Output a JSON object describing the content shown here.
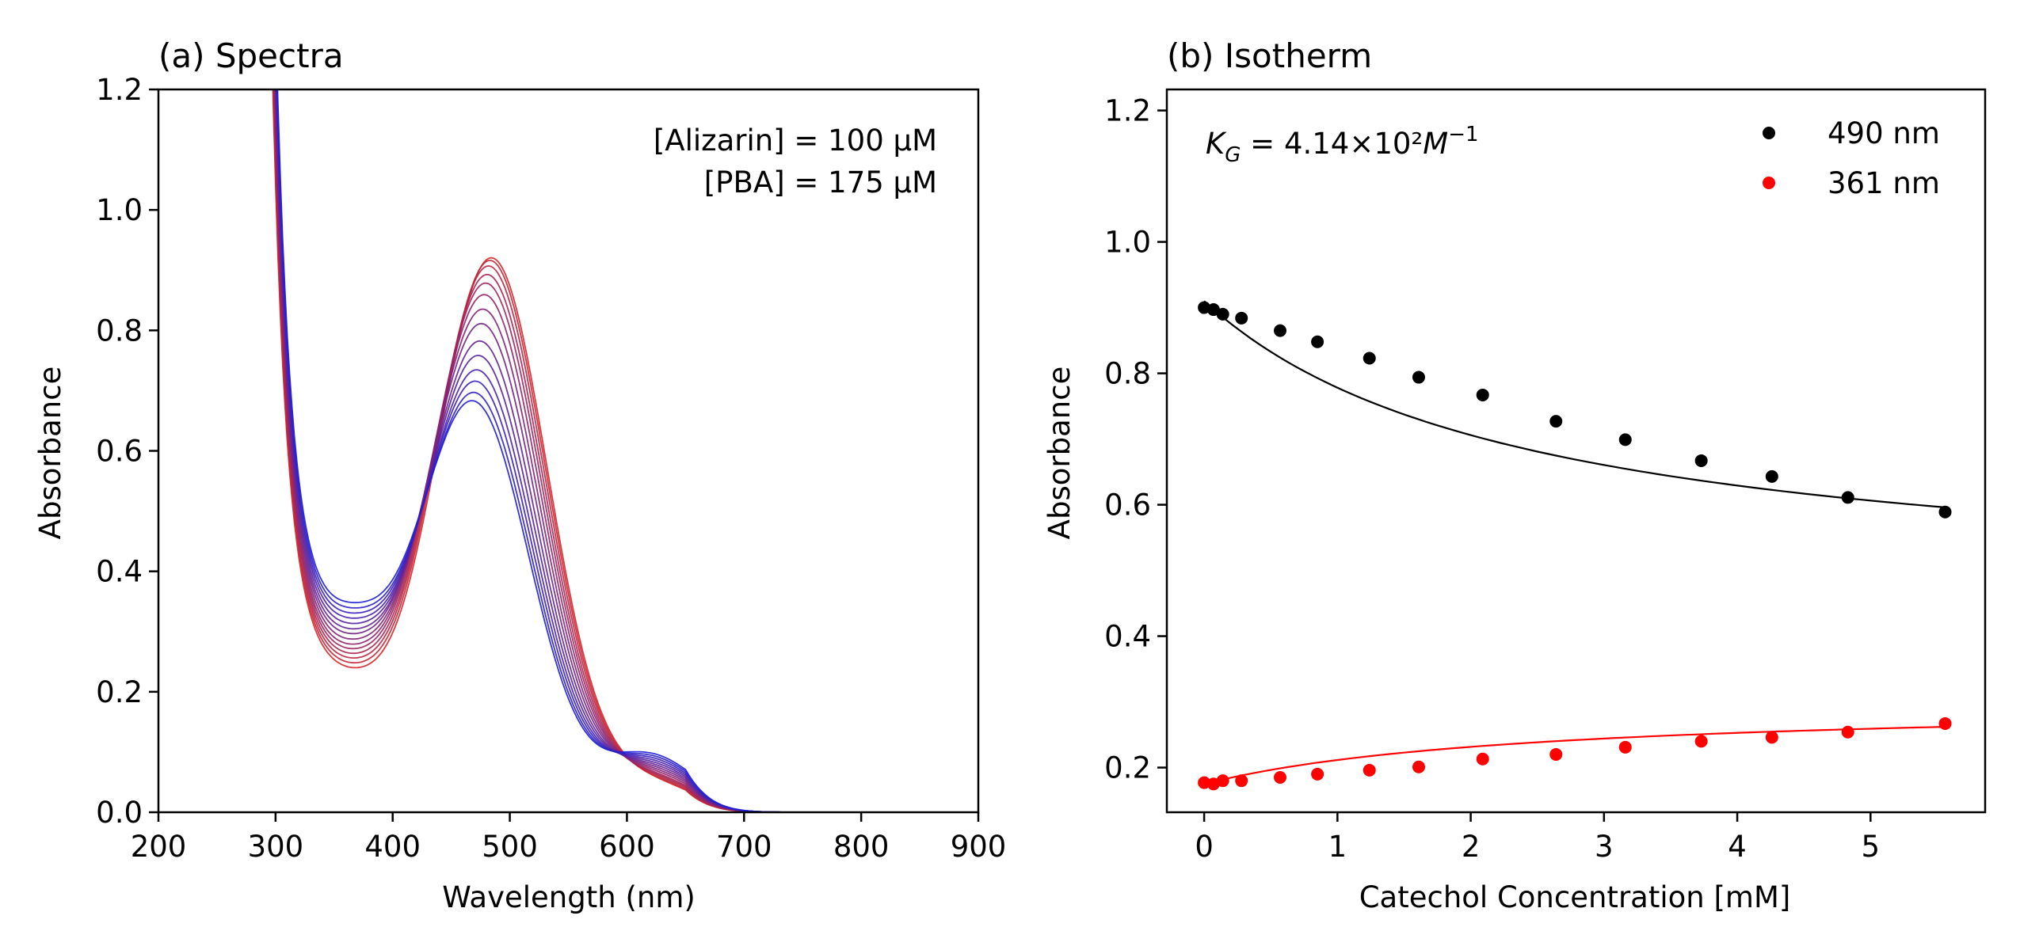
{
  "chart_data": [
    {
      "type": "line",
      "title": "(a) Spectra",
      "xlabel": "Wavelength (nm)",
      "ylabel": "Absorbance",
      "xlim": [
        200,
        900
      ],
      "ylim": [
        0,
        1.2
      ],
      "xticks": [
        200,
        300,
        400,
        500,
        600,
        700,
        800,
        900
      ],
      "yticks": [
        0.0,
        0.2,
        0.4,
        0.6,
        0.8,
        1.0,
        1.2
      ],
      "xtick_labels": [
        "200",
        "300",
        "400",
        "500",
        "600",
        "700",
        "800",
        "900"
      ],
      "ytick_labels": [
        "0.0",
        "0.2",
        "0.4",
        "0.6",
        "0.8",
        "1.0",
        "1.2"
      ],
      "annotations": [
        "[Alizarin] = 100 μM",
        "[PBA] = 175 μM"
      ],
      "color_start": "#d62728",
      "color_end": "#1f1fd6",
      "series_peak_490nm": [
        0.905,
        0.9,
        0.89,
        0.875,
        0.86,
        0.84,
        0.815,
        0.79,
        0.76,
        0.735,
        0.71,
        0.69,
        0.67,
        0.655
      ],
      "series_min_380nm": [
        0.14,
        0.145,
        0.15,
        0.155,
        0.16,
        0.165,
        0.172,
        0.18,
        0.187,
        0.195,
        0.203,
        0.21,
        0.217,
        0.224
      ],
      "series_shoulder_620nm": [
        0.045,
        0.047,
        0.05,
        0.053,
        0.056,
        0.06,
        0.064,
        0.068,
        0.072,
        0.076,
        0.08,
        0.084,
        0.088,
        0.092
      ]
    },
    {
      "type": "scatter",
      "title": "(b) Isotherm",
      "xlabel": "Catechol Concentration [mM]",
      "ylabel": "Absorbance",
      "xlim": [
        -0.28,
        5.86
      ],
      "ylim": [
        0.132,
        1.232
      ],
      "xticks": [
        0,
        1,
        2,
        3,
        4,
        5
      ],
      "yticks": [
        0.2,
        0.4,
        0.6,
        0.8,
        1.0,
        1.2
      ],
      "xtick_labels": [
        "0",
        "1",
        "2",
        "3",
        "4",
        "5"
      ],
      "ytick_labels": [
        "0.2",
        "0.4",
        "0.6",
        "0.8",
        "1.0",
        "1.2"
      ],
      "annotation": "K_G = 4.14×10²M⁻¹",
      "x": [
        0.0,
        0.07,
        0.14,
        0.28,
        0.57,
        0.85,
        1.24,
        1.61,
        2.09,
        2.64,
        3.16,
        3.73,
        4.26,
        4.83,
        5.56
      ],
      "series": [
        {
          "name": "490 nm",
          "color": "#000000",
          "values": [
            0.9,
            0.897,
            0.89,
            0.884,
            0.865,
            0.848,
            0.823,
            0.794,
            0.767,
            0.727,
            0.699,
            0.667,
            0.643,
            0.611,
            0.589
          ],
          "fit": {
            "x": [
              0.0,
              5.56
            ],
            "y_start": 0.91,
            "y_end": 0.596
          }
        },
        {
          "name": "361 nm",
          "color": "#ff0000",
          "values": [
            0.177,
            0.175,
            0.18,
            0.18,
            0.185,
            0.19,
            0.196,
            0.201,
            0.213,
            0.22,
            0.231,
            0.24,
            0.246,
            0.254,
            0.267
          ],
          "fit": {
            "x": [
              0.0,
              5.56
            ],
            "y_start": 0.175,
            "y_end": 0.262
          }
        }
      ]
    }
  ]
}
